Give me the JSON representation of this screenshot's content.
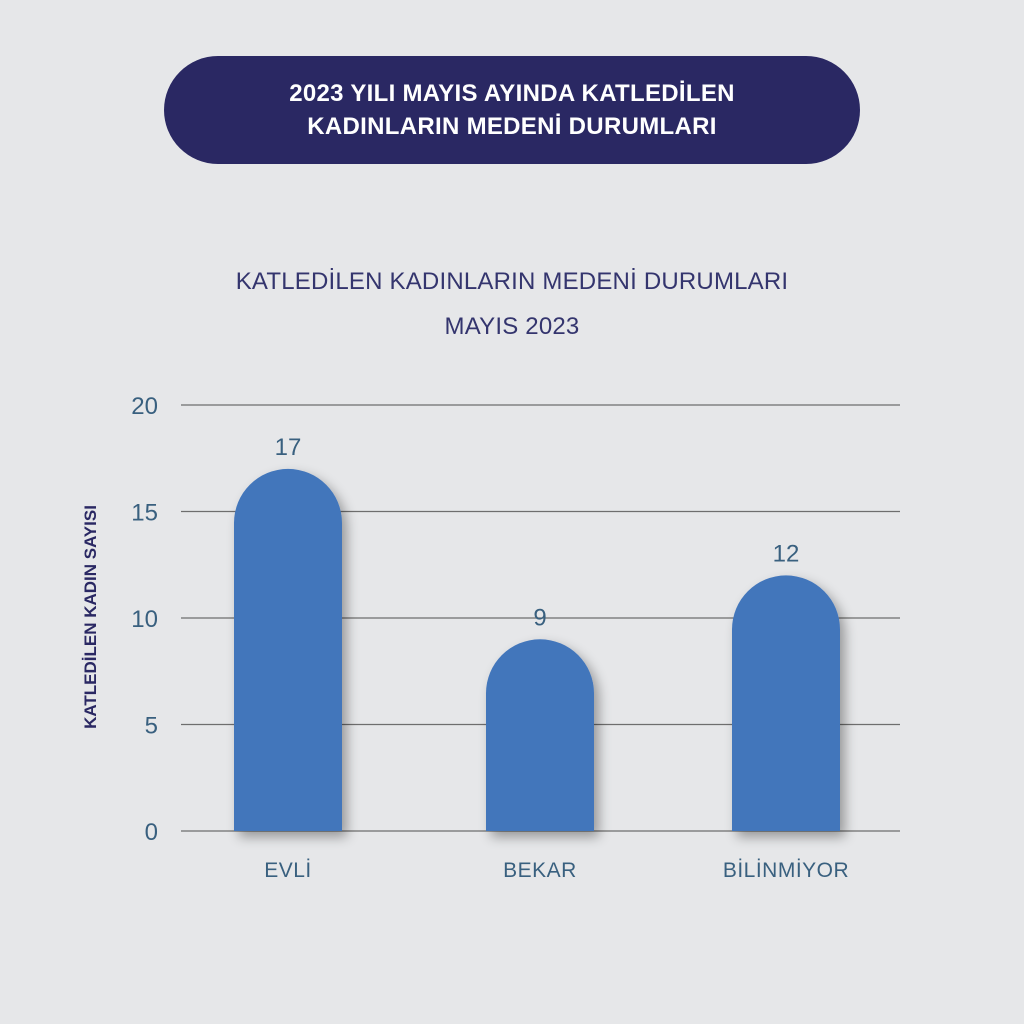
{
  "banner": {
    "line1": "2023 YILI MAYIS AYINDA KATLEDİLEN",
    "line2": "KADINLARIN MEDENİ DURUMLARI"
  },
  "colors": {
    "background": "#e6e7e9",
    "banner": "#2a2863",
    "bar": "#4376bb",
    "axis_text": "#39607f",
    "title_text": "#34356e"
  },
  "chart_data": {
    "type": "bar",
    "title": "KATLEDİLEN KADINLARIN MEDENİ DURUMLARI",
    "subtitle": "MAYIS 2023",
    "ylabel": "KATLEDİLEN KADIN SAYISI",
    "xlabel": "",
    "categories": [
      "EVLİ",
      "BEKAR",
      "BİLİNMİYOR"
    ],
    "values": [
      17,
      9,
      12
    ],
    "ylim": [
      0,
      20
    ],
    "yticks": [
      0,
      5,
      10,
      15,
      20
    ],
    "grid": true,
    "legend": "none"
  }
}
